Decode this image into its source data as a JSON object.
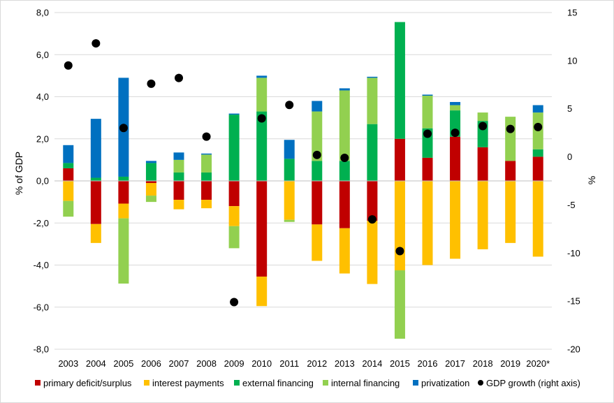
{
  "chart_data": {
    "type": "bar",
    "stacked": true,
    "categories": [
      "2003",
      "2004",
      "2005",
      "2006",
      "2007",
      "2008",
      "2009",
      "2010",
      "2011",
      "2012",
      "2013",
      "2014",
      "2015",
      "2016",
      "2017",
      "2018",
      "2019",
      "2020*"
    ],
    "ylabel": "% of GDP",
    "y2label": "%",
    "ylim": [
      -8,
      8
    ],
    "y2lim": [
      -20,
      15
    ],
    "yticks": [
      "8,0",
      "6,0",
      "4,0",
      "2,0",
      "0,0",
      "-2,0",
      "-4,0",
      "-6,0",
      "-8,0"
    ],
    "y2ticks": [
      "15",
      "10",
      "5",
      "0",
      "-5",
      "-10",
      "-15",
      "-20"
    ],
    "grid": "horizontal",
    "legend_position": "bottom",
    "colors": {
      "primary": "#c00000",
      "interest": "#ffc000",
      "external": "#00b050",
      "internal": "#92d050",
      "privatization": "#0070c0",
      "gdp": "#000000"
    },
    "series": [
      {
        "name": "primary deficit/surplus",
        "key": "primary",
        "values": [
          0.6,
          -2.05,
          -1.08,
          -0.1,
          -0.9,
          -0.9,
          -1.2,
          -4.55,
          0,
          -2.07,
          -2.25,
          -1.9,
          2.0,
          1.1,
          2.1,
          1.6,
          0.95,
          1.15
        ]
      },
      {
        "name": "interest payments",
        "key": "interest",
        "values": [
          -0.95,
          -0.9,
          -0.7,
          -0.6,
          -0.45,
          -0.4,
          -0.95,
          -1.4,
          -1.85,
          -1.73,
          -2.15,
          -3.0,
          -4.25,
          -4.0,
          -3.7,
          -3.25,
          -2.95,
          -3.6
        ]
      },
      {
        "name": "external financing",
        "key": "external",
        "values": [
          0.25,
          0.15,
          0.2,
          0.85,
          0.4,
          0.4,
          3.15,
          3.3,
          1.05,
          0.95,
          0.95,
          2.7,
          5.55,
          1.4,
          1.25,
          1.25,
          0,
          0.35
        ]
      },
      {
        "name": "internal financing",
        "key": "internal",
        "values": [
          -0.75,
          0,
          -3.1,
          -0.3,
          0.6,
          0.85,
          -1.05,
          1.6,
          -0.1,
          2.35,
          3.35,
          2.2,
          -3.25,
          1.55,
          0.25,
          0.4,
          2.1,
          1.75
        ]
      },
      {
        "name": "privatization",
        "key": "privatization",
        "values": [
          0.85,
          2.8,
          4.7,
          0.1,
          0.35,
          0.05,
          0.05,
          0.1,
          0.9,
          0.5,
          0.1,
          0.05,
          0,
          0.05,
          0.15,
          0,
          0,
          0.35
        ]
      }
    ],
    "gdp_series": {
      "name": "GDP growth (right axis)",
      "values": [
        9.5,
        11.8,
        3.0,
        7.6,
        8.2,
        2.1,
        -15.1,
        4.0,
        5.4,
        0.2,
        -0.1,
        -6.5,
        -9.8,
        2.4,
        2.5,
        3.2,
        2.9,
        3.1
      ]
    }
  }
}
